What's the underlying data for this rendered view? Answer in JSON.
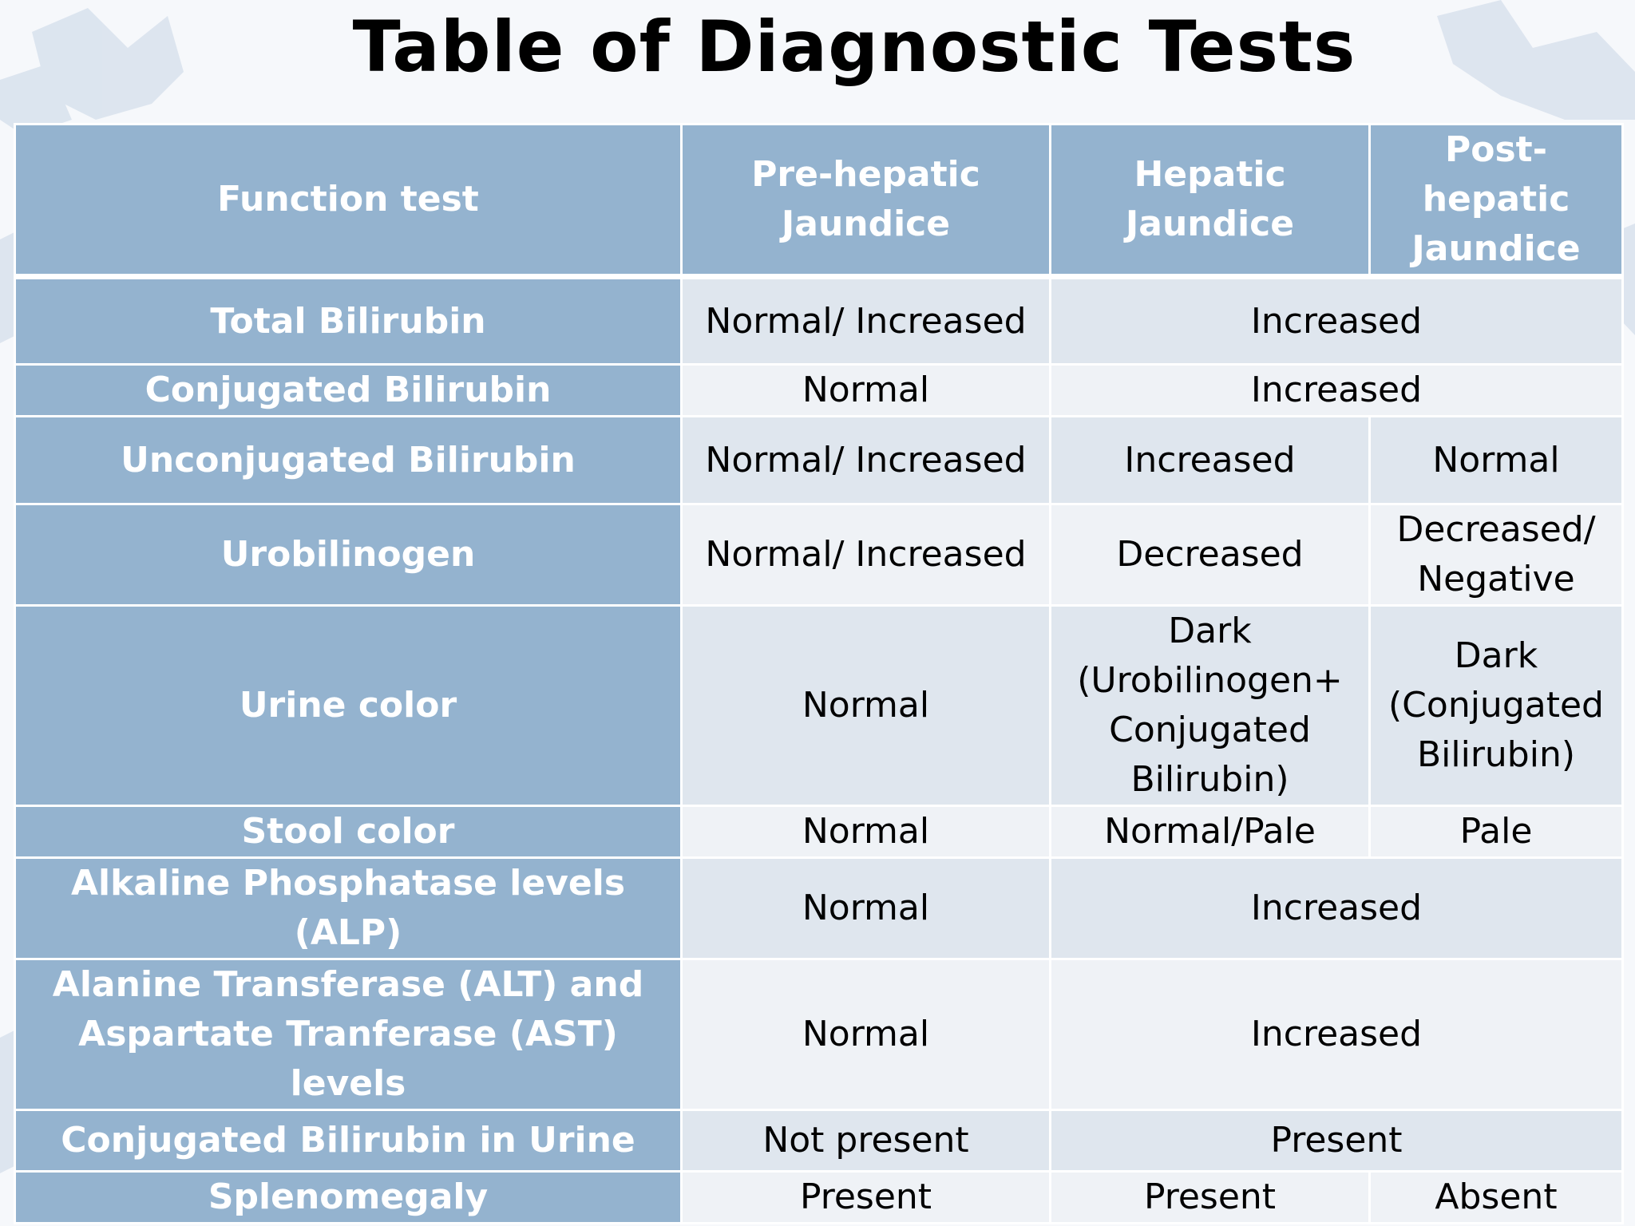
{
  "title": "Table of Diagnostic Tests",
  "header": {
    "function_test": "Function test",
    "pre_hepatic": "Pre-hepatic Jaundice",
    "hepatic": "Hepatic Jaundice",
    "post_hepatic": "Post-hepatic Jaundice"
  },
  "rows": [
    {
      "label": "Total Bilirubin",
      "pre": "Normal/ Increased",
      "hepatic_post": "Increased"
    },
    {
      "label": "Conjugated Bilirubin",
      "pre": "Normal",
      "hepatic_post": "Increased"
    },
    {
      "label": "Unconjugated Bilirubin",
      "pre": "Normal/ Increased",
      "hepatic": "Increased",
      "post": "Normal"
    },
    {
      "label": "Urobilinogen",
      "pre": "Normal/ Increased",
      "hepatic": "Decreased",
      "post": "Decreased/ Negative"
    },
    {
      "label": "Urine color",
      "pre": "Normal",
      "hepatic": "Dark (Urobilinogen+ Conjugated Bilirubin)",
      "post": "Dark (Conjugated Bilirubin)"
    },
    {
      "label": "Stool color",
      "pre": "Normal",
      "hepatic": "Normal/Pale",
      "post": "Pale"
    },
    {
      "label": "Alkaline Phosphatase levels (ALP)",
      "pre": "Normal",
      "hepatic_post": "Increased"
    },
    {
      "label": "Alanine Transferase (ALT) and Aspartate Tranferase (AST) levels",
      "pre": "Normal",
      "hepatic_post": "Increased"
    },
    {
      "label": "Conjugated Bilirubin in Urine",
      "pre": "Not present",
      "hepatic_post": "Present"
    },
    {
      "label": "Splenomegaly",
      "pre": "Present",
      "hepatic": "Present",
      "post": "Absent"
    }
  ],
  "colors": {
    "header_bg": "#94b3cf",
    "row_odd_bg": "#dfe6ee",
    "row_even_bg": "#eff2f6",
    "background": "#f6f8fb"
  },
  "decorations": {
    "background_icon": "maple-leaf-icon"
  }
}
